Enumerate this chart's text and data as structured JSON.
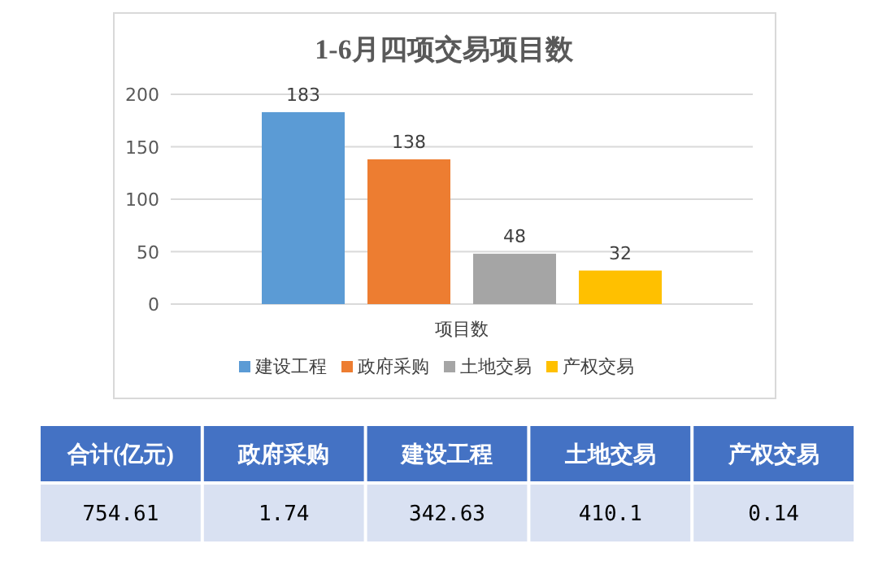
{
  "chart_data": [
    {
      "type": "bar",
      "title": "1-6月四项交易项目数",
      "categories": [
        "项目数"
      ],
      "series": [
        {
          "name": "建设工程",
          "color": "#5b9bd5",
          "values": [
            183
          ]
        },
        {
          "name": "政府采购",
          "color": "#ed7d31",
          "values": [
            138
          ]
        },
        {
          "name": "土地交易",
          "color": "#a5a5a5",
          "values": [
            48
          ]
        },
        {
          "name": "产权交易",
          "color": "#ffc000",
          "values": [
            32
          ]
        }
      ],
      "ylim": [
        0,
        200
      ],
      "yticks": [
        0,
        50,
        100,
        150,
        200
      ],
      "grid": "y",
      "legend": "bottom",
      "data_labels": true
    },
    {
      "type": "other",
      "categories": [
        "合计(亿元)",
        "政府采购",
        "建设工程",
        "土地交易",
        "产权交易"
      ],
      "values": [
        754.61,
        1.74,
        342.63,
        410.1,
        0.14
      ],
      "data_labels": true
    }
  ]
}
